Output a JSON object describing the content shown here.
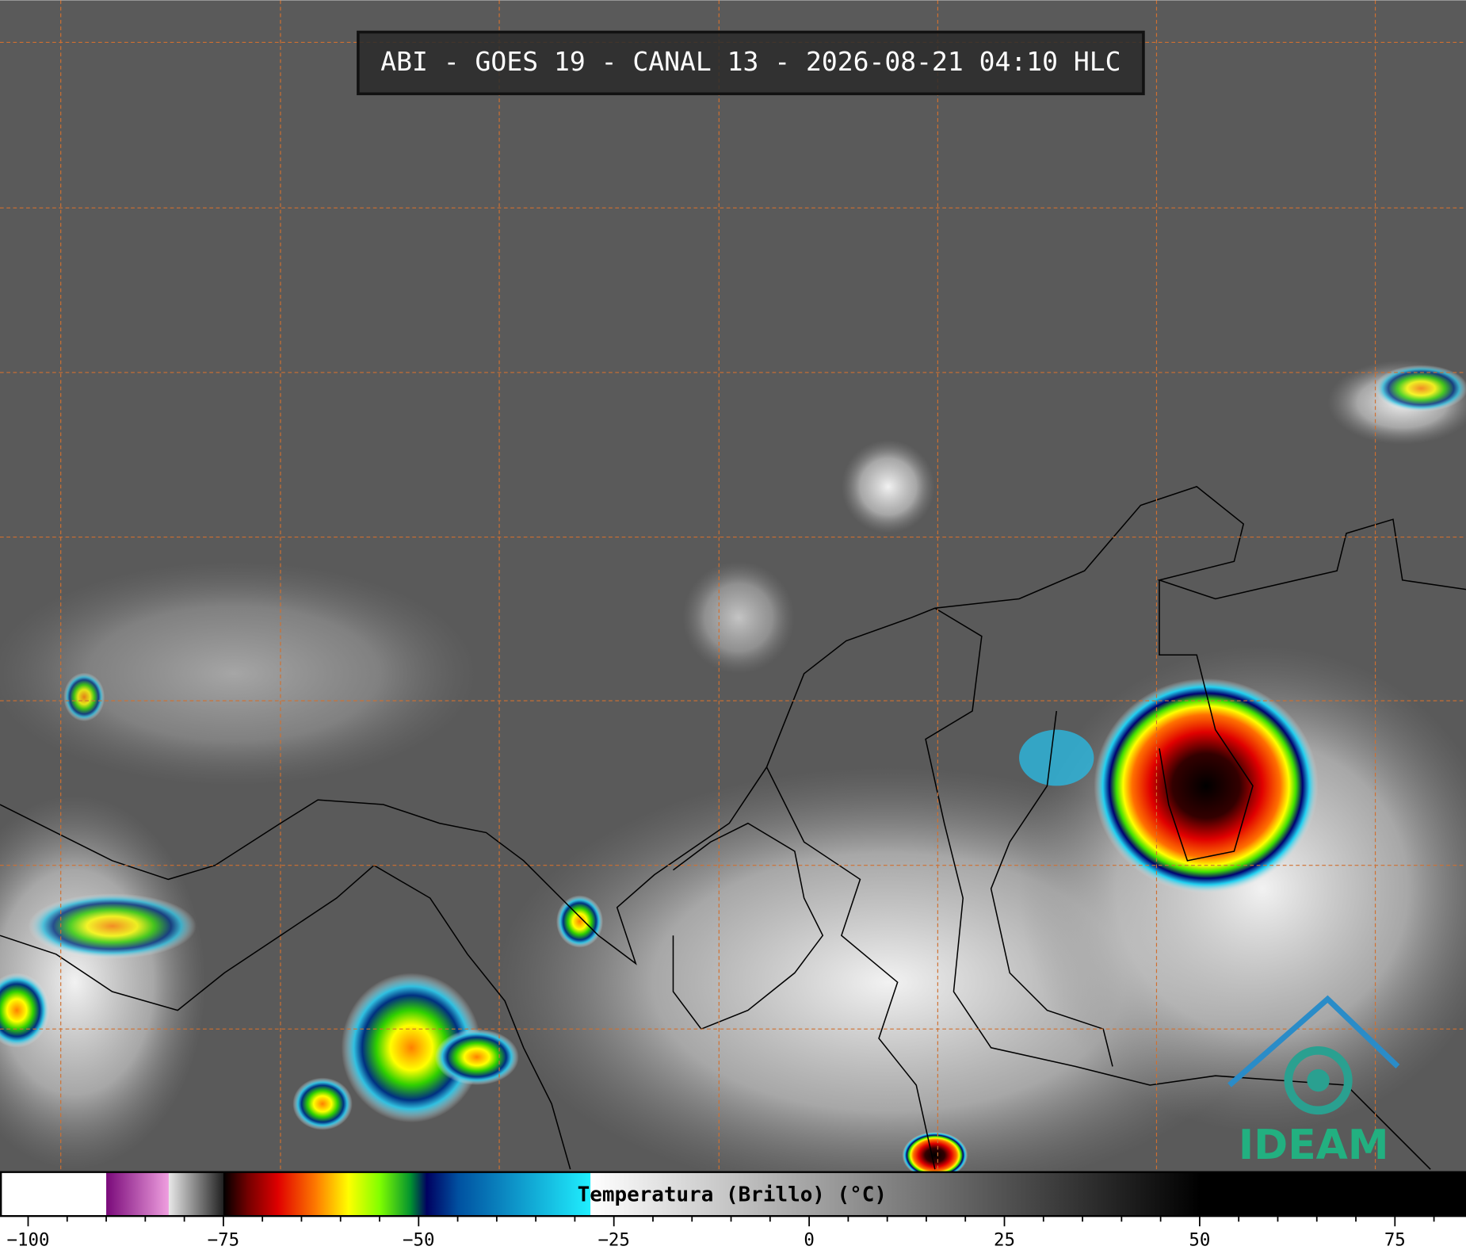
{
  "header": {
    "title": "ABI - GOES 19 - CANAL 13 - 2026-08-21 04:10 HLC"
  },
  "logo": {
    "text": "IDEAM"
  },
  "colorbar": {
    "label": "Temperatura (Brillo) (°C)",
    "xlim": [
      -103.6,
      84.1
    ],
    "xticks": [
      {
        "value": -100,
        "label": "−100"
      },
      {
        "value": -75,
        "label": "−75"
      },
      {
        "value": -50,
        "label": "−50"
      },
      {
        "value": -25,
        "label": "−25"
      },
      0,
      25,
      50,
      75
    ],
    "minor_xticks": [
      -95,
      -90,
      -85,
      -80,
      -70,
      -65,
      -60,
      -55,
      -45,
      -40,
      -35,
      -30,
      -20,
      -15,
      -10,
      -5,
      5,
      10,
      15,
      20,
      30,
      35,
      40,
      45,
      55,
      60,
      65,
      70,
      80
    ],
    "colormap": [
      {
        "value": -103.6,
        "color": "#ffffff"
      },
      {
        "value": -90,
        "color": "#ffffff"
      },
      {
        "value": -90,
        "color": "#7a0a7a"
      },
      {
        "value": -82,
        "color": "#f0a0e0"
      },
      {
        "value": -82,
        "color": "#e8e8e8"
      },
      {
        "value": -75,
        "color": "#202020"
      },
      {
        "value": -75,
        "color": "#000000"
      },
      {
        "value": -72,
        "color": "#700000"
      },
      {
        "value": -68,
        "color": "#e00000"
      },
      {
        "value": -63,
        "color": "#ff8000"
      },
      {
        "value": -59,
        "color": "#ffff00"
      },
      {
        "value": -55,
        "color": "#80ff00"
      },
      {
        "value": -51,
        "color": "#009030"
      },
      {
        "value": -49,
        "color": "#000060"
      },
      {
        "value": -45,
        "color": "#0050a0"
      },
      {
        "value": -28,
        "color": "#20f0ff"
      },
      {
        "value": -28,
        "color": "#ffffff"
      },
      {
        "value": 50,
        "color": "#000000"
      },
      {
        "value": 84.1,
        "color": "#000000"
      }
    ]
  }
}
